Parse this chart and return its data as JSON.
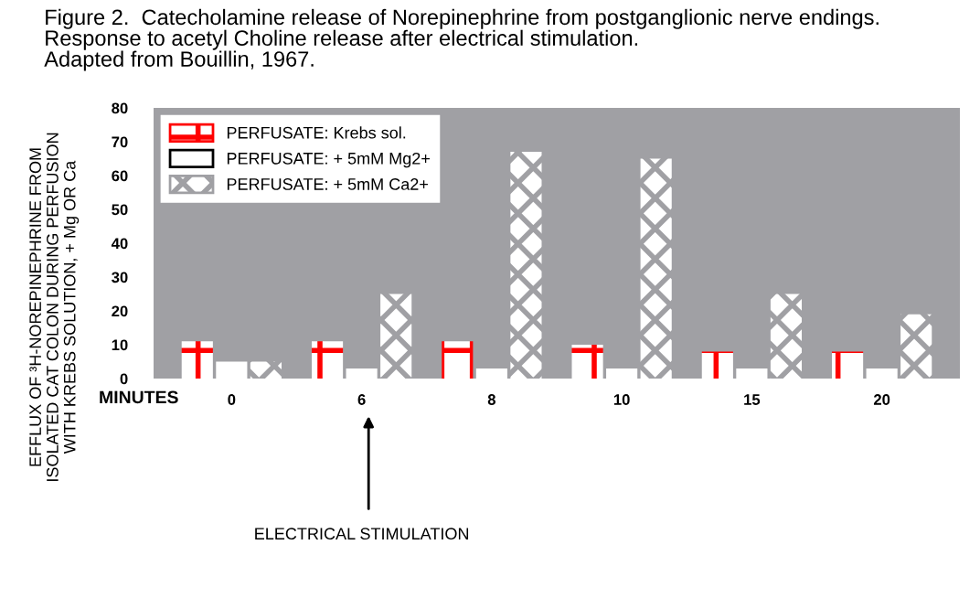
{
  "chart_data": {
    "type": "bar",
    "title": "Figure 2.  Catecholamine release of Norepinephrine from postganglionic nerve endings.\nResponse to acetyl Choline release after electrical stimulation.\nAdapted from Bouillin, 1967.",
    "ylabel": "EFFLUX OF ³H-NOREPINEPHRINE FROM\nISOLATED CAT COLON DURING PERFUSION\nWITH KREBS SOLUTION, + Mg OR Ca",
    "xlabel": "MINUTES",
    "categories": [
      "0",
      "6",
      "8",
      "10",
      "15",
      "20"
    ],
    "series": [
      {
        "name": "PERFUSATE: Krebs sol.",
        "color": "#ff0000",
        "values": [
          11,
          11,
          11,
          10,
          8,
          8
        ]
      },
      {
        "name": "PERFUSATE: + 5mM Mg2+",
        "color": "#ffffff",
        "values": [
          5,
          3,
          3,
          3,
          3,
          3
        ]
      },
      {
        "name": "PERFUSATE: + 5mM Ca2+",
        "color": "#a0a0a4",
        "values": [
          5,
          25,
          67,
          65,
          25,
          19
        ]
      }
    ],
    "ylim": [
      0,
      80
    ],
    "yticks": [
      0,
      10,
      20,
      30,
      40,
      50,
      60,
      70,
      80
    ],
    "annotations": [
      "ELECTRICAL STIMULATION"
    ],
    "legend": "top left",
    "grid": false
  }
}
